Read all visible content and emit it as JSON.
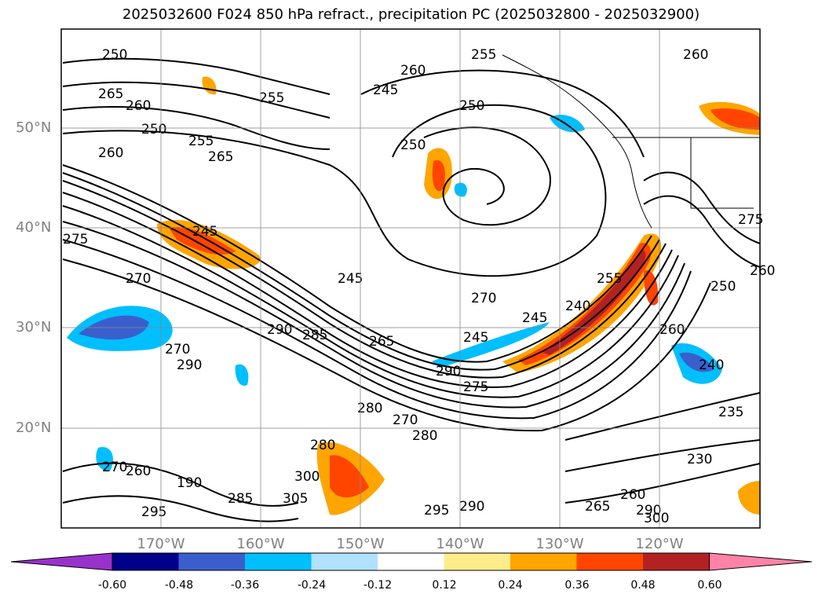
{
  "title": "2025032600 F024 850 hPa refract., precipitation PC (2025032800 - 2025032900)",
  "lat_labels": [
    "50°N",
    "40°N",
    "30°N",
    "20°N"
  ],
  "lon_labels": [
    "170°W",
    "160°W",
    "150°W",
    "140°W",
    "130°W",
    "120°W"
  ],
  "colorbar": {
    "colors": [
      "#9932cc",
      "#00008b",
      "#3a5fcd",
      "#00bfff",
      "#b0e2ff",
      "#ffffff",
      "#ffec8b",
      "#ffa500",
      "#ff4500",
      "#b22222",
      "#ff83a8"
    ],
    "ticks": [
      "-0.60",
      "-0.48",
      "-0.36",
      "-0.24",
      "-0.12",
      "0.12",
      "0.24",
      "0.36",
      "0.48",
      "0.60"
    ]
  },
  "contour_labels": [
    "250",
    "265",
    "260",
    "255",
    "250",
    "260",
    "255",
    "265",
    "260",
    "250",
    "245",
    "255",
    "260",
    "250",
    "245",
    "275",
    "270",
    "245",
    "290",
    "285",
    "265",
    "270",
    "290",
    "245",
    "270",
    "245",
    "240",
    "255",
    "260",
    "290",
    "275",
    "280",
    "270",
    "280",
    "295",
    "290",
    "280",
    "305",
    "300",
    "190",
    "260",
    "270",
    "295",
    "285",
    "240",
    "250",
    "235",
    "230",
    "260",
    "265",
    "290",
    "300",
    "275",
    "260"
  ]
}
